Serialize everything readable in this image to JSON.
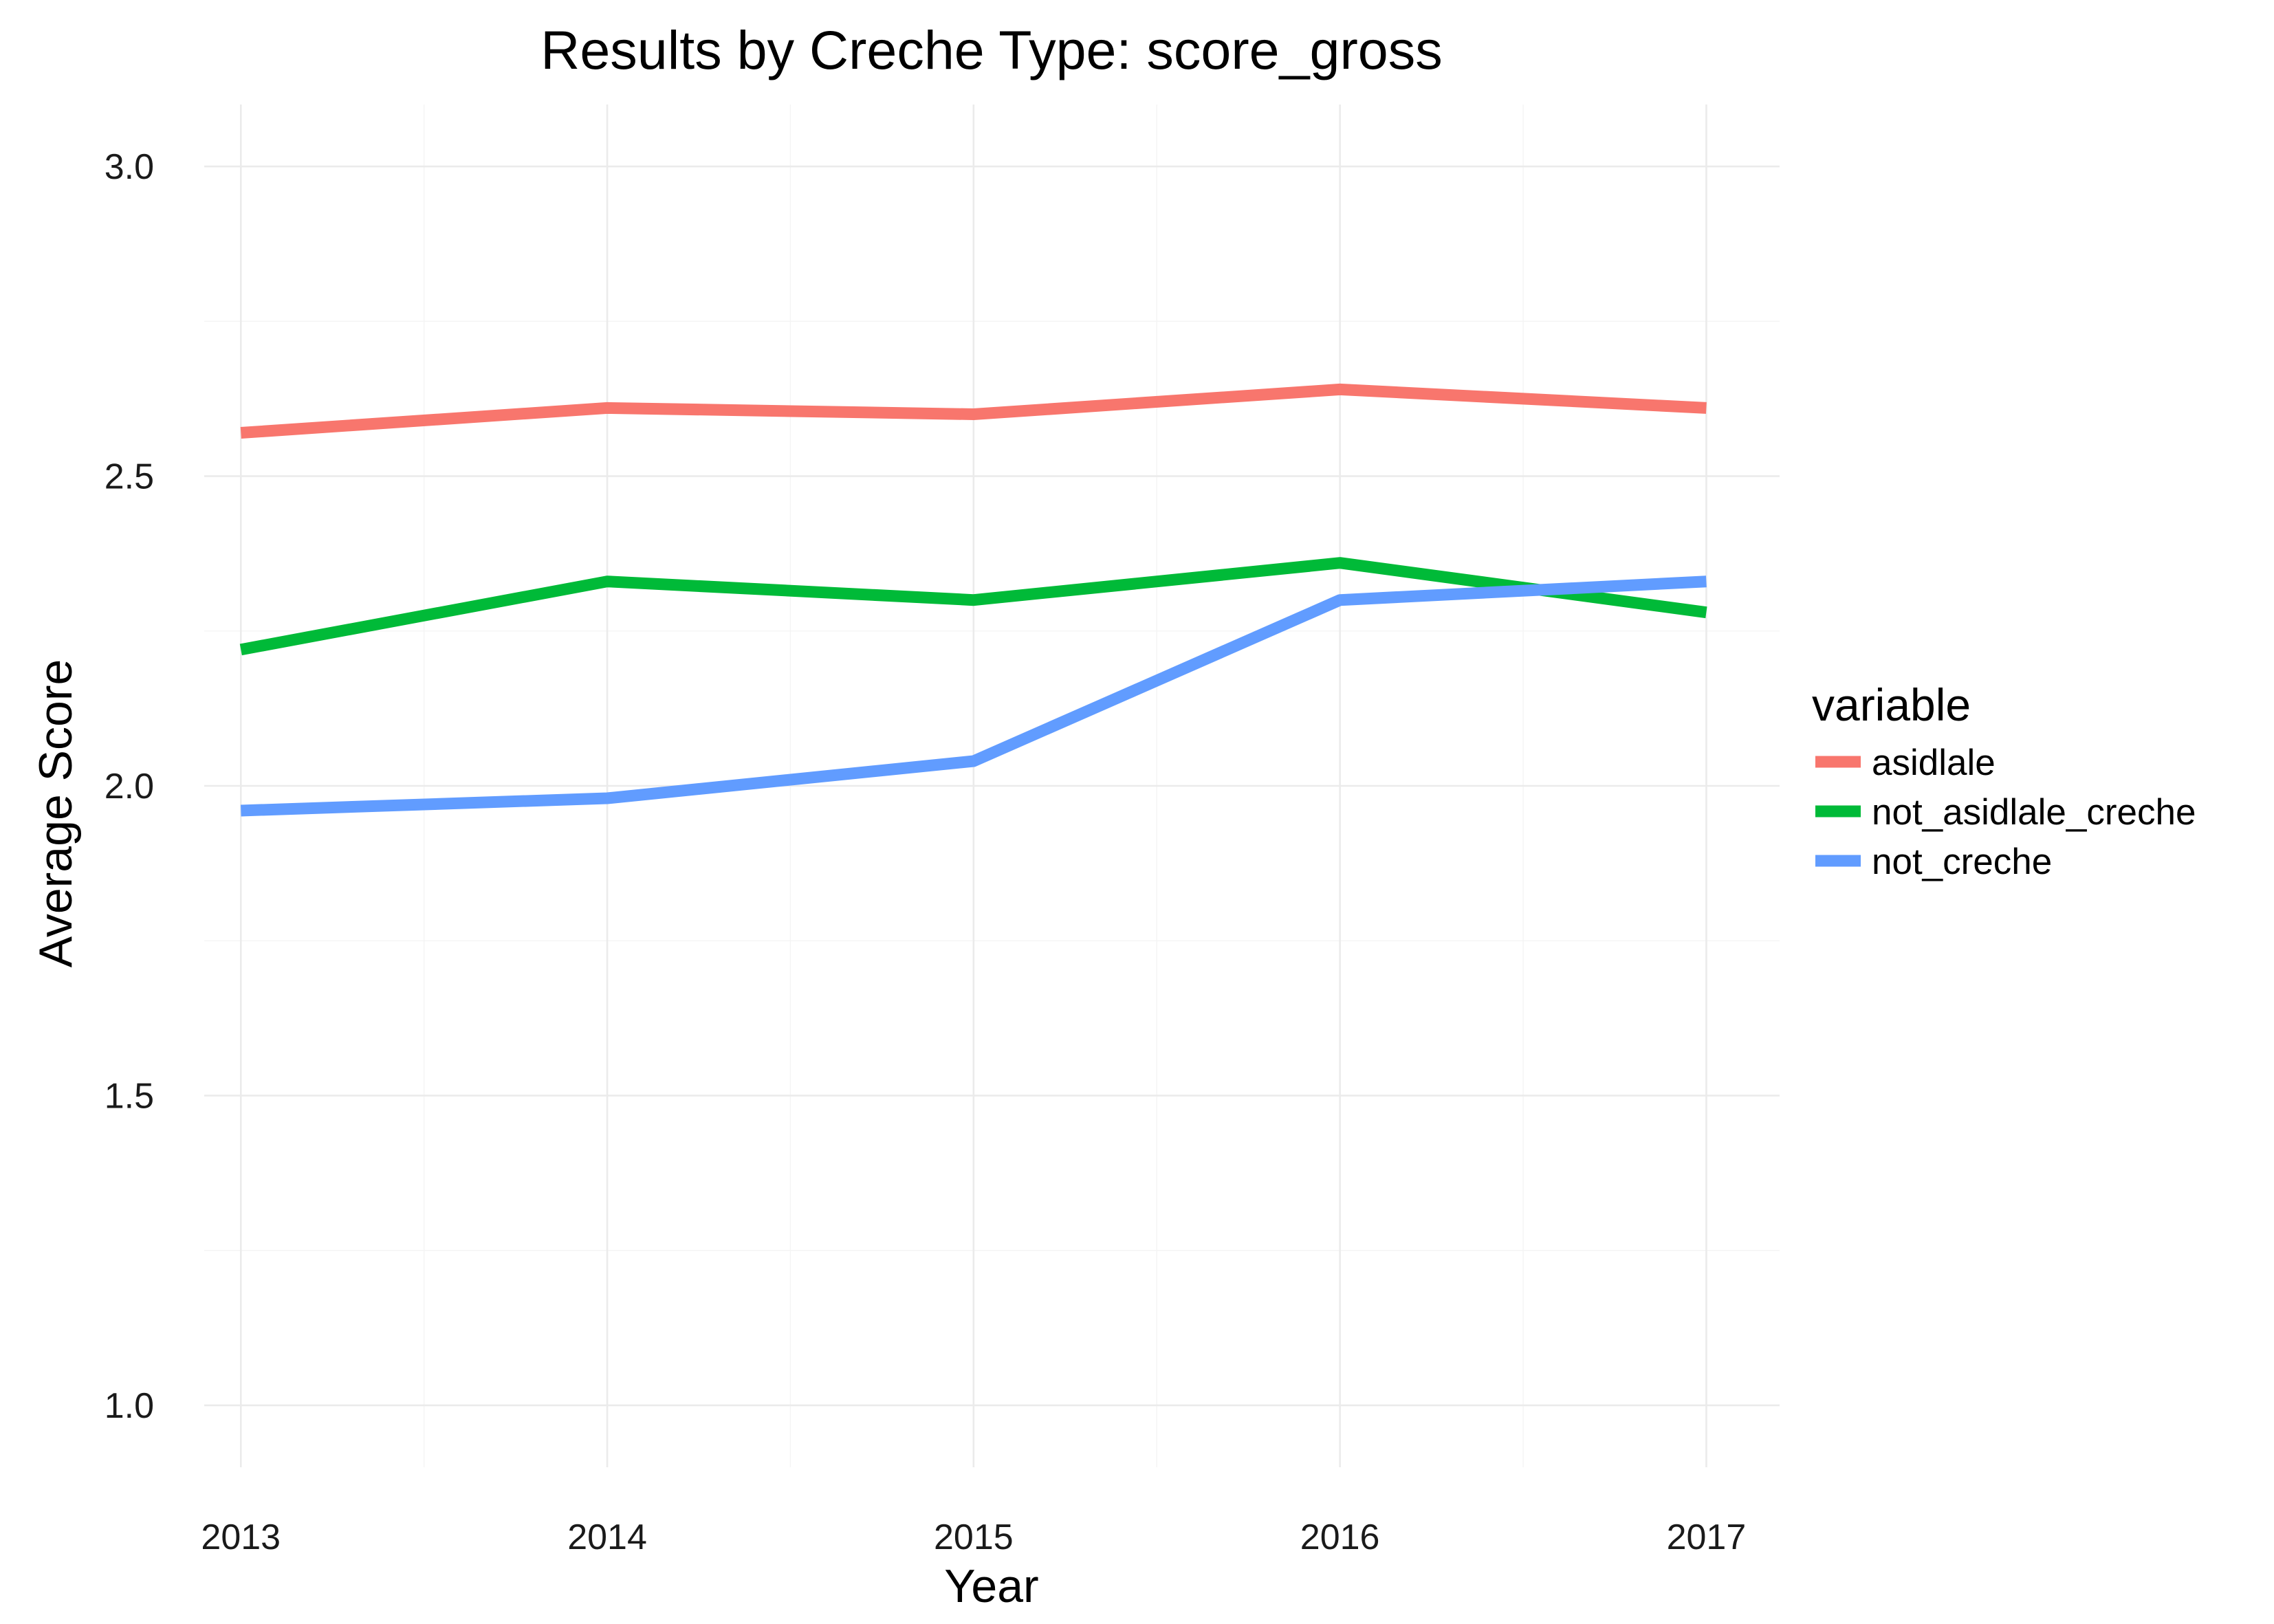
{
  "chart_data": {
    "type": "line",
    "title": "Results by Creche Type: score_gross",
    "xlabel": "Year",
    "ylabel": "Average Score",
    "x": [
      2013,
      2014,
      2015,
      2016,
      2017
    ],
    "x_tick_labels": [
      "2013",
      "2014",
      "2015",
      "2016",
      "2017"
    ],
    "y_tick_labels": [
      "1.0",
      "1.5",
      "2.0",
      "2.5",
      "3.0"
    ],
    "y_ticks": [
      1.0,
      1.5,
      2.0,
      2.5,
      3.0
    ],
    "xlim": [
      2012.9,
      2017.2
    ],
    "ylim": [
      0.9,
      3.1
    ],
    "grid": true,
    "legend_title": "variable",
    "legend_position": "right",
    "series": [
      {
        "name": "asidlale",
        "color": "#F8766D",
        "values": [
          2.57,
          2.61,
          2.6,
          2.64,
          2.61
        ]
      },
      {
        "name": "not_asidlale_creche",
        "color": "#00BA38",
        "values": [
          2.22,
          2.33,
          2.3,
          2.36,
          2.28
        ]
      },
      {
        "name": "not_creche",
        "color": "#619CFF",
        "values": [
          1.96,
          1.98,
          2.04,
          2.3,
          2.33
        ]
      }
    ]
  }
}
